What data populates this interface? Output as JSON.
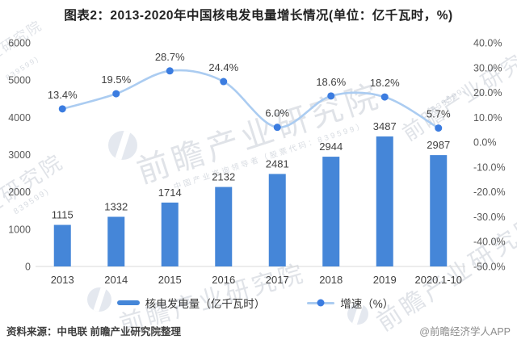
{
  "title": "图表2：2013-2020年中国核电发电量增长情况(单位：亿千瓦时，%)",
  "chart_data": {
    "type": "bar+line",
    "categories": [
      "2013",
      "2014",
      "2015",
      "2016",
      "2017",
      "2018",
      "2019",
      "2020.1-10"
    ],
    "series": [
      {
        "name": "核电发电量（亿千瓦时）",
        "type": "bar",
        "axis": "left",
        "values": [
          1115,
          1332,
          1714,
          2132,
          2481,
          2944,
          3487,
          2987
        ],
        "value_labels": [
          "1115",
          "1332",
          "1714",
          "2132",
          "2481",
          "2944",
          "3487",
          "2987"
        ]
      },
      {
        "name": "增速（%）",
        "type": "line",
        "axis": "right",
        "values": [
          13.4,
          19.5,
          28.7,
          24.4,
          6.0,
          18.6,
          18.2,
          5.7
        ],
        "value_labels": [
          "13.4%",
          "19.5%",
          "28.7%",
          "24.4%",
          "6.0%",
          "18.6%",
          "18.2%",
          "5.7%"
        ]
      }
    ],
    "y_left": {
      "min": 0,
      "max": 6000,
      "ticks_top_down": [
        "6000",
        "5000",
        "4000",
        "3000",
        "2000",
        "1000",
        "0"
      ]
    },
    "y_right": {
      "min": -50,
      "max": 40,
      "ticks_top_down": [
        "40.0%",
        "30.0%",
        "20.0%",
        "10.0%",
        "0.0%",
        "-10.0%",
        "-20.0%",
        "-30.0%",
        "-40.0%",
        "-50.0%"
      ]
    },
    "grid": false,
    "legend_position": "bottom"
  },
  "colors": {
    "bar": "#4586d8",
    "line": "#abccf1",
    "marker": "#3b7ce0",
    "axis_line": "#d9d9d9",
    "tick_text": "#595959",
    "label_text": "#404040",
    "title_text": "#222222",
    "source_text": "#3f3f3f",
    "credit_text": "#8c8c8c",
    "watermark": "#b2bac6"
  },
  "footer": {
    "source": "资料来源：中电联 前瞻产业研究院整理",
    "credit": "@前瞻经济学人APP"
  },
  "watermark": {
    "text": "前瞻产业研究院",
    "subtext": "中国产业咨询领导者（股票代码：839599）",
    "digits": "839599)"
  }
}
